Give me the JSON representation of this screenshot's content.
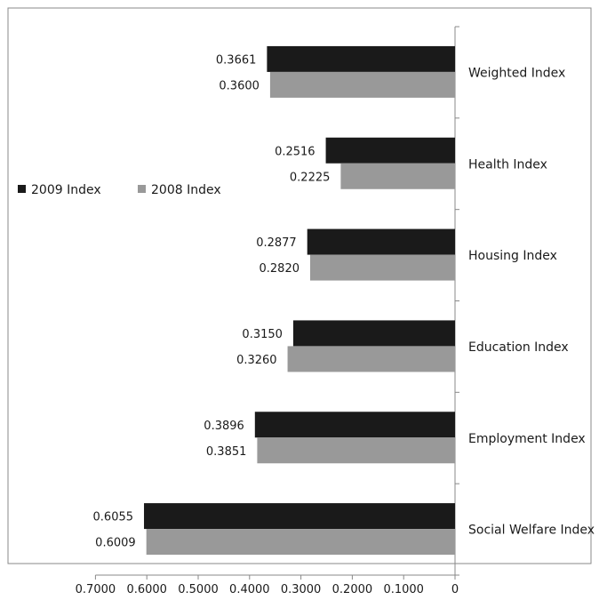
{
  "chart_data": {
    "type": "bar",
    "orientation": "horizontal",
    "x_axis_reversed": true,
    "categories": [
      "Weighted Index",
      "Health Index",
      "Housing Index",
      "Education Index",
      "Employment Index",
      "Social Welfare Index"
    ],
    "series": [
      {
        "name": "2009 Index",
        "color": "#1a1a1a",
        "values": [
          0.3661,
          0.2516,
          0.2877,
          0.315,
          0.3896,
          0.6055
        ],
        "labels": [
          "0.3661",
          "0.2516",
          "0.2877",
          "0.3150",
          "0.3896",
          "0.6055"
        ]
      },
      {
        "name": "2008 Index",
        "color": "#999999",
        "values": [
          0.36,
          0.2225,
          0.282,
          0.326,
          0.3851,
          0.6009
        ],
        "labels": [
          "0.3600",
          "0.2225",
          "0.2820",
          "0.3260",
          "0.3851",
          "0.6009"
        ]
      }
    ],
    "xlim": [
      0,
      0.7
    ],
    "x_ticks": [
      0.7,
      0.6,
      0.5,
      0.4,
      0.3,
      0.2,
      0.1,
      0
    ],
    "x_tick_labels": [
      "0.7000",
      "0.6000",
      "0.5000",
      "0.4000",
      "0.3000",
      "0.2000",
      "0.1000",
      "0"
    ],
    "title": "",
    "xlabel": "",
    "ylabel": "",
    "grid": false,
    "legend_position": "left",
    "frame_color": "#888888"
  }
}
